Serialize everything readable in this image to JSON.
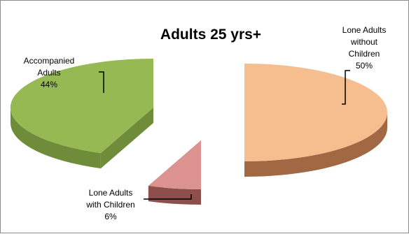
{
  "chart_data": {
    "type": "pie",
    "title": "Adults 25 yrs+",
    "slices": [
      {
        "name": "Lone Adults without Children",
        "label_lines": [
          "Lone Adults",
          "without",
          "Children"
        ],
        "value_label": "50%",
        "value": 50,
        "color": "#f6bd8f",
        "side": "#a26844"
      },
      {
        "name": "Lone Adults with Children",
        "label_lines": [
          "Lone Adults",
          "with Children"
        ],
        "value_label": "6%",
        "value": 6,
        "color": "#dc928f",
        "side": "#8c4f4b"
      },
      {
        "name": "Accompanied Adults",
        "label_lines": [
          "Accompanied",
          "Adults"
        ],
        "value_label": "44%",
        "value": 44,
        "color": "#97b953",
        "side": "#6f8c3a"
      }
    ],
    "legend": "none",
    "style": "3d-exploded"
  }
}
